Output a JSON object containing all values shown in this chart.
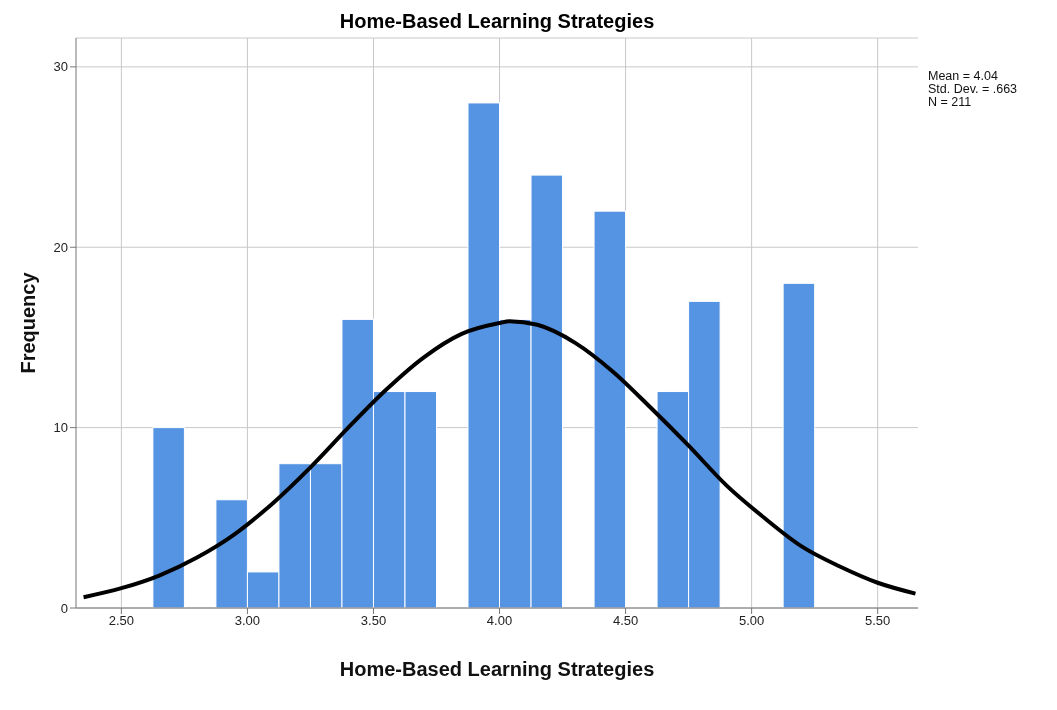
{
  "chart_data": {
    "type": "histogram",
    "title": "Home-Based Learning Strategies",
    "xlabel": "Home-Based Learning Strategies",
    "ylabel": "Frequency",
    "annotations": [
      "Mean = 4.04",
      "Std. Dev. = .663",
      "N = 211"
    ],
    "bins": [
      2.625,
      2.75,
      2.875,
      3.0,
      3.125,
      3.25,
      3.375,
      3.5,
      3.625,
      3.75,
      3.875,
      4.0,
      4.125,
      4.25,
      4.375,
      4.5,
      4.625,
      4.75,
      4.875,
      5.0,
      5.125,
      5.25
    ],
    "values": [
      10,
      0,
      6,
      2,
      8,
      8,
      16,
      12,
      12,
      0,
      28,
      16,
      24,
      0,
      22,
      0,
      12,
      17,
      0,
      0,
      18
    ],
    "color": "#5594e3",
    "series": [
      {
        "type": "line",
        "color": "#000000",
        "x": [
          2.35,
          2.5,
          2.65,
          2.8,
          2.95,
          3.1,
          3.25,
          3.4,
          3.55,
          3.7,
          3.85,
          4.0,
          4.04,
          4.15,
          4.3,
          4.45,
          4.6,
          4.75,
          4.9,
          5.05,
          5.2,
          5.35,
          5.5,
          5.65
        ],
        "values": [
          0.6,
          1.1,
          1.8,
          2.8,
          4.1,
          5.8,
          7.8,
          10.0,
          12.1,
          13.9,
          15.2,
          15.8,
          15.9,
          15.7,
          14.7,
          13.1,
          11.1,
          9.0,
          6.8,
          5.0,
          3.4,
          2.3,
          1.4,
          0.8
        ]
      }
    ],
    "xlim": [
      2.32,
      5.66
    ],
    "ylim": [
      0,
      31.6
    ],
    "xticks": [
      {
        "value": 2.5,
        "label": "2.50"
      },
      {
        "value": 3.0,
        "label": "3.00"
      },
      {
        "value": 3.5,
        "label": "3.50"
      },
      {
        "value": 4.0,
        "label": "4.00"
      },
      {
        "value": 4.5,
        "label": "4.50"
      },
      {
        "value": 5.0,
        "label": "5.00"
      },
      {
        "value": 5.5,
        "label": "5.50"
      }
    ],
    "yticks": [
      0,
      10,
      20,
      30
    ],
    "grid": true,
    "marker": "none",
    "line_style": "solid"
  }
}
